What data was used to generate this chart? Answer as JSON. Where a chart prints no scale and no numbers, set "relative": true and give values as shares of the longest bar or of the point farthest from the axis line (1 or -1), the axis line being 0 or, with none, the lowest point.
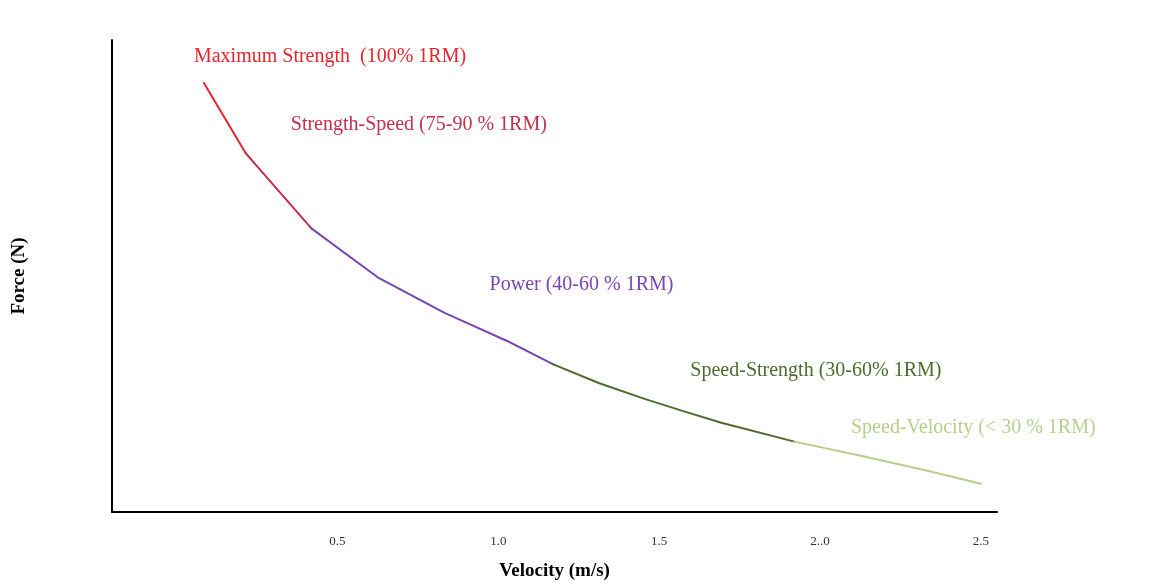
{
  "chart_data": {
    "type": "line",
    "relative": true,
    "xlabel": "Velocity (m/s)",
    "ylabel": "Force (N)",
    "xlim": [
      -0.2,
      2.55
    ],
    "xticks": [
      0.5,
      {
        "value": 1,
        "label": "1.0"
      },
      1.5,
      {
        "value": 2,
        "label": "2..0"
      },
      2.5
    ],
    "marker": "none",
    "line_style": "solid",
    "grid": false,
    "series": [
      {
        "color": "#e8262e",
        "x": [
          0.085,
          0.215
        ],
        "values": [
          1,
          0.836
        ]
      },
      {
        "color": "#c4304a",
        "x": [
          0.215,
          0.419
        ],
        "values": [
          0.836,
          0.661
        ]
      },
      {
        "color": "#7a45b0",
        "x": [
          0.419,
          0.625,
          0.833,
          1.029,
          1.171
        ],
        "values": [
          0.661,
          0.547,
          0.464,
          0.398,
          0.344
        ]
      },
      {
        "color": "#4e6a2c",
        "x": [
          1.171,
          1.314,
          1.457,
          1.58,
          1.693,
          1.92
        ],
        "values": [
          0.344,
          0.3,
          0.263,
          0.234,
          0.208,
          0.164
        ]
      },
      {
        "color": "#b6d08c",
        "x": [
          1.92,
          2.127,
          2.324,
          2.5
        ],
        "values": [
          0.164,
          0.131,
          0.098,
          0.066
        ]
      }
    ],
    "annotations": [
      "Maximum Strength  (100% 1RM)",
      "Strength-Speed (75-90 % 1RM)",
      "Power (40-60 % 1RM)",
      "Speed-Strength (30-60% 1RM)",
      "Speed-Velocity (< 30 % 1RM)"
    ]
  }
}
